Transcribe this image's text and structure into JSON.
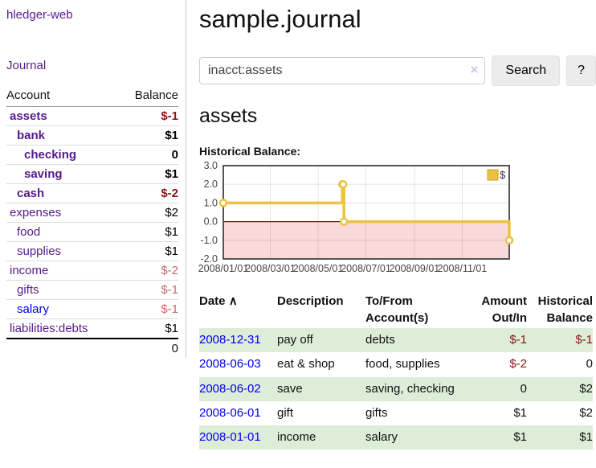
{
  "app": {
    "brand": "hledger-web",
    "nav_journal": "Journal"
  },
  "colors": {
    "accent_purple": "#551A8B",
    "link_blue": "#0000EE",
    "negative_strong": "#8b1414",
    "negative_soft": "#c46a6a",
    "row_stripe_green": "#deedd8",
    "chart_gold": "#edc240",
    "chart_zero_line_red": "#aa0000",
    "chart_negative_fill": "#f9d9d9",
    "sidebar_divider_gray": "#cccccc"
  },
  "sidebar": {
    "accounts_col": "Account",
    "balance_col": "Balance",
    "accounts": [
      {
        "name": "assets",
        "level": 1,
        "bold": true,
        "balance": "$-1",
        "balance_style": "neg-strong"
      },
      {
        "name": "bank",
        "level": 2,
        "bold": true,
        "balance": "$1",
        "balance_style": "pos"
      },
      {
        "name": "checking",
        "level": 3,
        "bold": true,
        "balance": "0",
        "balance_style": "pos"
      },
      {
        "name": "saving",
        "level": 3,
        "bold": true,
        "balance": "$1",
        "balance_style": "pos"
      },
      {
        "name": "cash",
        "level": 2,
        "bold": true,
        "balance": "$-2",
        "balance_style": "neg-strong"
      },
      {
        "name": "expenses",
        "level": 1,
        "bold": false,
        "balance": "$2",
        "balance_style": "pos"
      },
      {
        "name": "food",
        "level": 2,
        "bold": false,
        "balance": "$1",
        "balance_style": "pos"
      },
      {
        "name": "supplies",
        "level": 2,
        "bold": false,
        "balance": "$1",
        "balance_style": "pos"
      },
      {
        "name": "income",
        "level": 1,
        "bold": false,
        "balance": "$-2",
        "balance_style": "neg-soft"
      },
      {
        "name": "gifts",
        "level": 2,
        "bold": false,
        "balance": "$-1",
        "balance_style": "neg-soft"
      },
      {
        "name": "salary",
        "level": 2,
        "bold": false,
        "link_color": "blue",
        "balance": "$-1",
        "balance_style": "neg-soft"
      },
      {
        "name": "liabilities:debts",
        "level": 1,
        "bold": false,
        "balance": "$1",
        "balance_style": "pos"
      }
    ],
    "total": "0"
  },
  "header": {
    "title": "sample.journal"
  },
  "search": {
    "value": "inacct:assets",
    "clear_icon": "×",
    "button": "Search",
    "help_button": "?"
  },
  "account_page": {
    "heading": "assets",
    "chart_label": "Historical Balance:"
  },
  "chart_data": {
    "type": "line",
    "step": true,
    "title": "Historical Balance:",
    "series": [
      {
        "name": "$",
        "color": "#edc240",
        "points": [
          [
            "2008-01-01",
            1
          ],
          [
            "2008-06-01",
            2
          ],
          [
            "2008-06-02",
            2
          ],
          [
            "2008-06-03",
            0
          ],
          [
            "2008-12-31",
            -1
          ]
        ]
      }
    ],
    "xlim": [
      "2008-01-01",
      "2008-12-31"
    ],
    "ylim": [
      -2,
      3
    ],
    "ytick_labels": [
      "3.0",
      "2.0",
      "1.0",
      "0.0",
      "-1.0",
      "-2.0"
    ],
    "yticks": [
      3,
      2,
      1,
      0,
      -1,
      -2
    ],
    "xticks": [
      {
        "label": "2008/01/01",
        "date": "2008-01-01"
      },
      {
        "label": "2008/03/01",
        "date": "2008-03-01"
      },
      {
        "label": "2008/05/01",
        "date": "2008-05-01"
      },
      {
        "label": "2008/07/01",
        "date": "2008-07-01"
      },
      {
        "label": "2008/09/01",
        "date": "2008-09-01"
      },
      {
        "label": "2008/11/01",
        "date": "2008-11-01"
      }
    ],
    "legend": {
      "label": "$",
      "position": "top-right"
    },
    "grid": true,
    "zero_line_color": "#aa0000",
    "negative_fill": "#f9d9d9",
    "border_color": "#545454",
    "tick_color": "#444444"
  },
  "register": {
    "col_date": "Date",
    "sort_icon": "∧",
    "col_description": "Description",
    "col_tofrom_1": "To/From",
    "col_tofrom_2": "Account(s)",
    "col_amount_1": "Amount",
    "col_amount_2": "Out/In",
    "col_balance_1": "Historical",
    "col_balance_2": "Balance",
    "rows": [
      {
        "date": "2008-12-31",
        "description": "pay off",
        "accounts": "debts",
        "amount": "$-1",
        "amount_neg": true,
        "balance": "$-1",
        "balance_neg": true
      },
      {
        "date": "2008-06-03",
        "description": "eat & shop",
        "accounts": "food, supplies",
        "amount": "$-2",
        "amount_neg": true,
        "balance": "0",
        "balance_neg": false
      },
      {
        "date": "2008-06-02",
        "description": "save",
        "accounts": "saving, checking",
        "amount": "0",
        "amount_neg": false,
        "balance": "$2",
        "balance_neg": false
      },
      {
        "date": "2008-06-01",
        "description": "gift",
        "accounts": "gifts",
        "amount": "$1",
        "amount_neg": false,
        "balance": "$2",
        "balance_neg": false
      },
      {
        "date": "2008-01-01",
        "description": "income",
        "accounts": "salary",
        "amount": "$1",
        "amount_neg": false,
        "balance": "$1",
        "balance_neg": false
      }
    ]
  }
}
